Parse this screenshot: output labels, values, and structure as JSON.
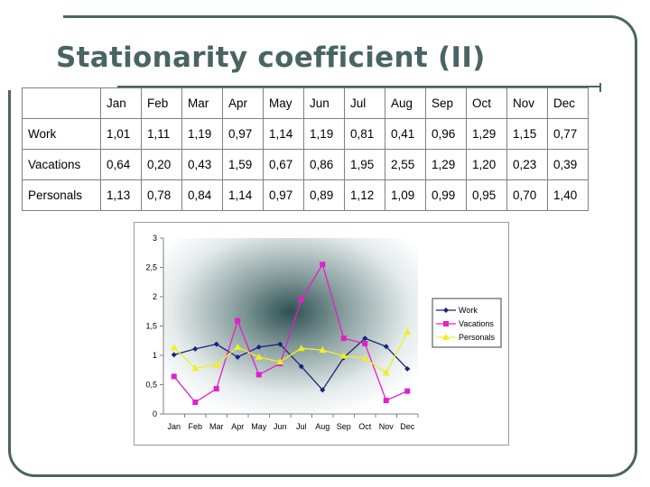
{
  "slide": {
    "title": "Stationarity coefficient (II)"
  },
  "table": {
    "header": [
      "",
      "Jan",
      "Feb",
      "Mar",
      "Apr",
      "May",
      "Jun",
      "Jul",
      "Aug",
      "Sep",
      "Oct",
      "Nov",
      "Dec"
    ],
    "rows": [
      {
        "label": "Work",
        "cells": [
          "1,01",
          "1,11",
          "1,19",
          "0,97",
          "1,14",
          "1,19",
          "0,81",
          "0,41",
          "0,96",
          "1,29",
          "1,15",
          "0,77"
        ]
      },
      {
        "label": "Vacations",
        "cells": [
          "0,64",
          "0,20",
          "0,43",
          "1,59",
          "0,67",
          "0,86",
          "1,95",
          "2,55",
          "1,29",
          "1,20",
          "0,23",
          "0,39"
        ]
      },
      {
        "label": "Personals",
        "cells": [
          "1,13",
          "0,78",
          "0,84",
          "1,14",
          "0,97",
          "0,89",
          "1,12",
          "1,09",
          "0,99",
          "0,95",
          "0,70",
          "1,40"
        ]
      }
    ]
  },
  "chart_data": {
    "type": "line",
    "categories": [
      "Jan",
      "Feb",
      "Mar",
      "Apr",
      "May",
      "Jun",
      "Jul",
      "Aug",
      "Sep",
      "Oct",
      "Nov",
      "Dec"
    ],
    "series": [
      {
        "name": "Work",
        "color": "#1a237e",
        "marker": "diamond",
        "values": [
          1.01,
          1.11,
          1.19,
          0.97,
          1.14,
          1.19,
          0.81,
          0.41,
          0.96,
          1.29,
          1.15,
          0.77
        ]
      },
      {
        "name": "Vacations",
        "color": "#e020c8",
        "marker": "square",
        "values": [
          0.64,
          0.2,
          0.43,
          1.59,
          0.67,
          0.86,
          1.95,
          2.55,
          1.29,
          1.2,
          0.23,
          0.39
        ]
      },
      {
        "name": "Personals",
        "color": "#f0f020",
        "marker": "triangle",
        "values": [
          1.13,
          0.78,
          0.84,
          1.14,
          0.97,
          0.89,
          1.12,
          1.09,
          0.99,
          0.95,
          0.7,
          1.4
        ]
      }
    ],
    "yticks": [
      "0",
      "0,5",
      "1",
      "1,5",
      "2",
      "2,5",
      "3"
    ],
    "ylim": [
      0,
      3
    ],
    "grid": false,
    "legend": "right",
    "plot_background": "radial gradient, dark teal-grey center fading to white"
  }
}
